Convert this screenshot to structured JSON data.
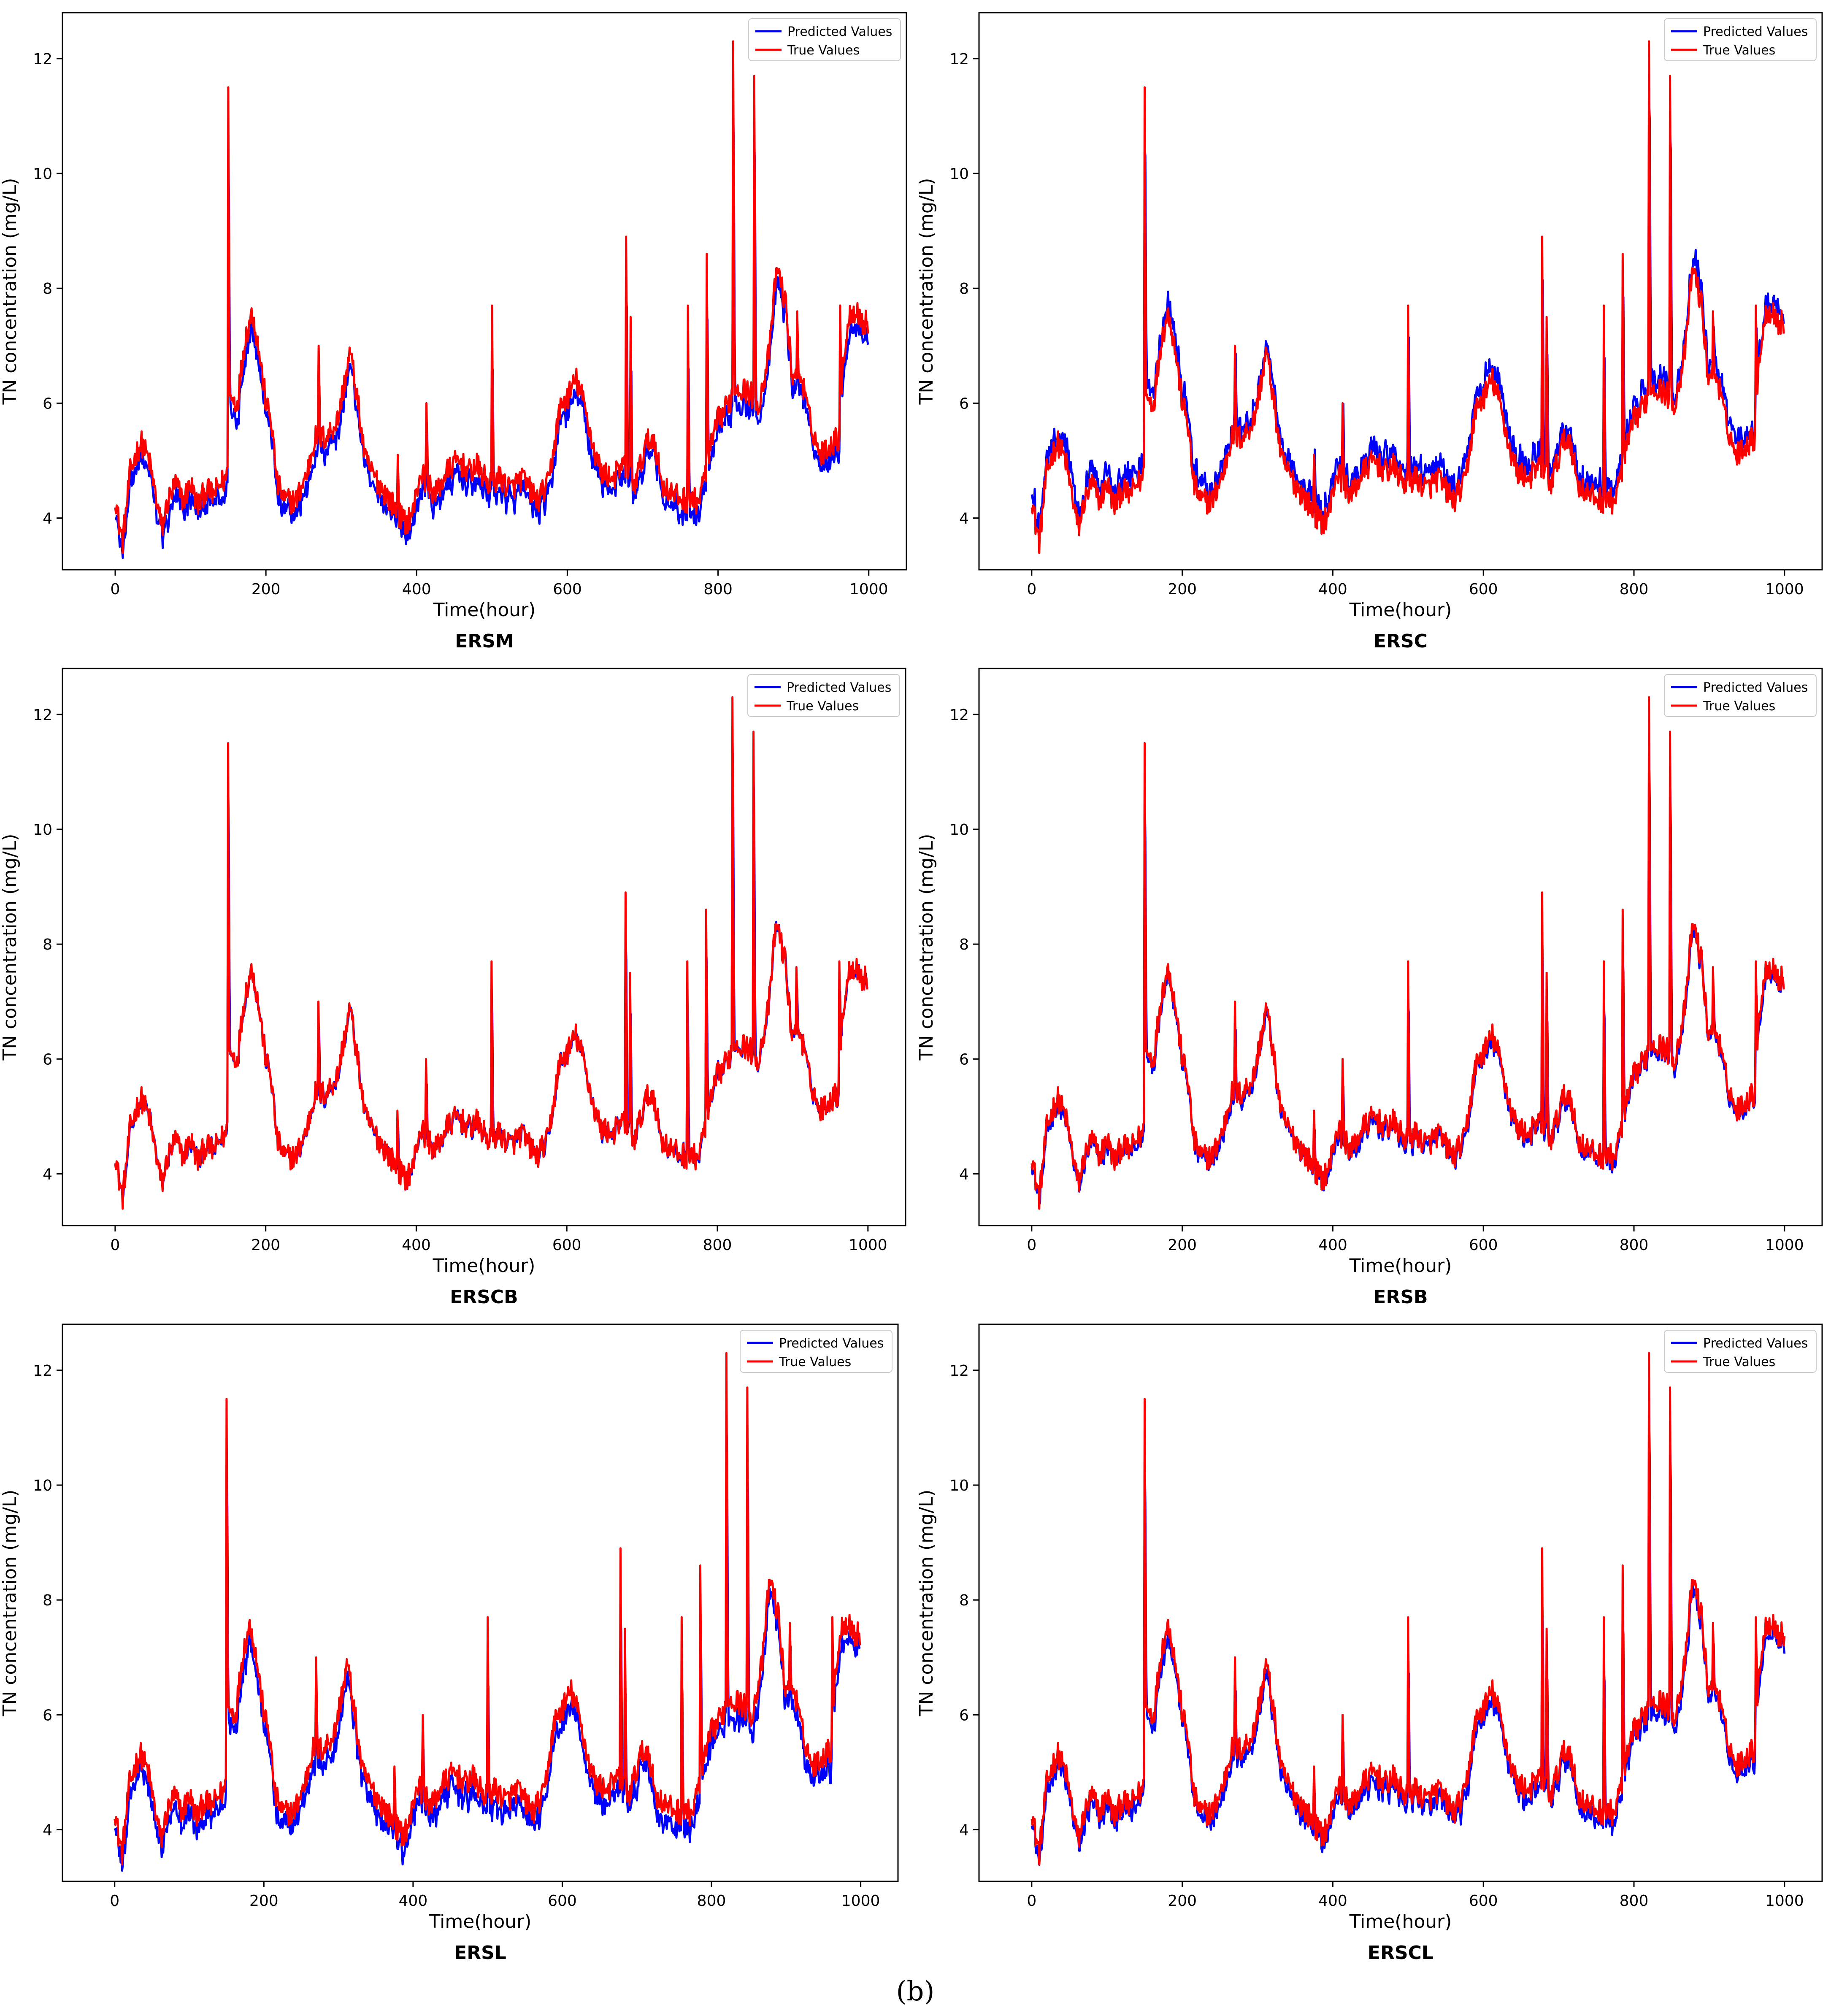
{
  "caption": "(b)",
  "colors": {
    "predicted": "#0000ff",
    "true": "#ff0000",
    "frame": "#000000",
    "legend_border": "#cccccc"
  },
  "chart_data": [
    {
      "type": "line",
      "title": "ERSM",
      "xlabel": "Time(hour)",
      "ylabel": "TN concentration (mg/L)",
      "xlim": [
        -70,
        1050
      ],
      "ylim": [
        3.1,
        12.8
      ],
      "xticks": [
        "0",
        "200",
        "400",
        "600",
        "800",
        "1000"
      ],
      "yticks": [
        "4",
        "6",
        "8",
        "10",
        "12"
      ],
      "legend": [
        "Predicted Values",
        "True Values"
      ],
      "legend_loc": "upper right",
      "pred_bias": -0.22,
      "noise": 0.14,
      "x_range": [
        0,
        999
      ]
    },
    {
      "type": "line",
      "title": "ERSC",
      "xlabel": "Time(hour)",
      "ylabel": "TN concentration (mg/L)",
      "xlim": [
        -70,
        1050
      ],
      "ylim": [
        3.1,
        12.8
      ],
      "xticks": [
        "0",
        "200",
        "400",
        "600",
        "800",
        "1000"
      ],
      "yticks": [
        "4",
        "6",
        "8",
        "10",
        "12"
      ],
      "legend": [
        "Predicted Values",
        "True Values"
      ],
      "legend_loc": "upper right",
      "pred_bias": 0.2,
      "noise": 0.18,
      "x_range": [
        0,
        999
      ]
    },
    {
      "type": "line",
      "title": "ERSCB",
      "xlabel": "Time(hour)",
      "ylabel": "TN concentration (mg/L)",
      "xlim": [
        -70,
        1050
      ],
      "ylim": [
        3.1,
        12.8
      ],
      "xticks": [
        "0",
        "200",
        "400",
        "600",
        "800",
        "1000"
      ],
      "yticks": [
        "4",
        "6",
        "8",
        "10",
        "12"
      ],
      "legend": [
        "Predicted Values",
        "True Values"
      ],
      "legend_loc": "upper right",
      "pred_bias": -0.02,
      "noise": 0.06,
      "x_range": [
        0,
        999
      ]
    },
    {
      "type": "line",
      "title": "ERSB",
      "xlabel": "Time(hour)",
      "ylabel": "TN concentration (mg/L)",
      "xlim": [
        -70,
        1050
      ],
      "ylim": [
        3.1,
        12.8
      ],
      "xticks": [
        "0",
        "200",
        "400",
        "600",
        "800",
        "1000"
      ],
      "yticks": [
        "4",
        "6",
        "8",
        "10",
        "12"
      ],
      "legend": [
        "Predicted Values",
        "True Values"
      ],
      "legend_loc": "upper right",
      "pred_bias": -0.08,
      "noise": 0.08,
      "x_range": [
        0,
        999
      ]
    },
    {
      "type": "line",
      "title": "ERSL",
      "xlabel": "Time(hour)",
      "ylabel": "TN concentration (mg/L)",
      "xlim": [
        -70,
        1050
      ],
      "ylim": [
        3.1,
        12.8
      ],
      "xticks": [
        "0",
        "200",
        "400",
        "600",
        "800",
        "1000"
      ],
      "yticks": [
        "4",
        "6",
        "8",
        "10",
        "12"
      ],
      "legend": [
        "Predicted Values",
        "True Values"
      ],
      "legend_loc": "upper right",
      "pred_bias": -0.25,
      "noise": 0.15,
      "x_range": [
        0,
        999
      ]
    },
    {
      "type": "line",
      "title": "ERSCL",
      "xlabel": "Time(hour)",
      "ylabel": "TN concentration (mg/L)",
      "xlim": [
        -70,
        1050
      ],
      "ylim": [
        3.1,
        12.8
      ],
      "xticks": [
        "0",
        "200",
        "400",
        "600",
        "800",
        "1000"
      ],
      "yticks": [
        "4",
        "6",
        "8",
        "10",
        "12"
      ],
      "legend": [
        "Predicted Values",
        "True Values"
      ],
      "legend_loc": "upper right",
      "pred_bias": -0.16,
      "noise": 0.1,
      "x_range": [
        0,
        1000
      ]
    }
  ],
  "series_template": {
    "anchors": [
      [
        0,
        4.4
      ],
      [
        5,
        3.9
      ],
      [
        10,
        3.6
      ],
      [
        20,
        4.8
      ],
      [
        30,
        5.2
      ],
      [
        35,
        5.3
      ],
      [
        45,
        5.0
      ],
      [
        55,
        4.3
      ],
      [
        62,
        3.8
      ],
      [
        70,
        4.3
      ],
      [
        80,
        4.6
      ],
      [
        90,
        4.3
      ],
      [
        100,
        4.6
      ],
      [
        110,
        4.2
      ],
      [
        120,
        4.5
      ],
      [
        130,
        4.4
      ],
      [
        140,
        4.6
      ],
      [
        148,
        4.7
      ],
      [
        152,
        6.1
      ],
      [
        162,
        6.0
      ],
      [
        172,
        7.1
      ],
      [
        182,
        7.6
      ],
      [
        192,
        6.8
      ],
      [
        200,
        6.0
      ],
      [
        207,
        5.7
      ],
      [
        215,
        4.6
      ],
      [
        225,
        4.3
      ],
      [
        240,
        4.3
      ],
      [
        255,
        4.8
      ],
      [
        265,
        5.4
      ],
      [
        280,
        5.4
      ],
      [
        295,
        5.7
      ],
      [
        305,
        6.4
      ],
      [
        312,
        6.9
      ],
      [
        322,
        6.0
      ],
      [
        332,
        5.0
      ],
      [
        345,
        4.7
      ],
      [
        355,
        4.5
      ],
      [
        370,
        4.2
      ],
      [
        385,
        3.9
      ],
      [
        395,
        4.1
      ],
      [
        405,
        4.8
      ],
      [
        415,
        4.6
      ],
      [
        425,
        4.4
      ],
      [
        440,
        4.8
      ],
      [
        455,
        5.0
      ],
      [
        470,
        4.8
      ],
      [
        480,
        4.9
      ],
      [
        495,
        4.6
      ],
      [
        510,
        4.7
      ],
      [
        525,
        4.5
      ],
      [
        540,
        4.7
      ],
      [
        560,
        4.3
      ],
      [
        575,
        4.6
      ],
      [
        590,
        5.9
      ],
      [
        600,
        6.1
      ],
      [
        612,
        6.4
      ],
      [
        622,
        6.0
      ],
      [
        635,
        5.2
      ],
      [
        645,
        4.8
      ],
      [
        660,
        4.7
      ],
      [
        675,
        4.9
      ],
      [
        690,
        4.6
      ],
      [
        705,
        5.3
      ],
      [
        715,
        5.4
      ],
      [
        725,
        4.6
      ],
      [
        740,
        4.4
      ],
      [
        760,
        4.3
      ],
      [
        775,
        4.3
      ],
      [
        790,
        5.2
      ],
      [
        800,
        5.7
      ],
      [
        810,
        5.9
      ],
      [
        825,
        6.3
      ],
      [
        840,
        6.2
      ],
      [
        855,
        6.0
      ],
      [
        868,
        6.9
      ],
      [
        878,
        8.4
      ],
      [
        890,
        7.7
      ],
      [
        898,
        6.5
      ],
      [
        910,
        6.5
      ],
      [
        920,
        5.8
      ],
      [
        935,
        5.1
      ],
      [
        950,
        5.3
      ],
      [
        960,
        5.4
      ],
      [
        968,
        7.0
      ],
      [
        976,
        7.6
      ],
      [
        985,
        7.6
      ],
      [
        992,
        7.4
      ],
      [
        999,
        7.4
      ]
    ],
    "spikes": [
      [
        150,
        11.5
      ],
      [
        270,
        7.0
      ],
      [
        375,
        5.1
      ],
      [
        413,
        6.0
      ],
      [
        500,
        7.7
      ],
      [
        678,
        8.9
      ],
      [
        684,
        7.5
      ],
      [
        760,
        7.7
      ],
      [
        785,
        8.6
      ],
      [
        820,
        12.3
      ],
      [
        848,
        11.7
      ],
      [
        905,
        7.6
      ],
      [
        962,
        7.7
      ]
    ]
  }
}
